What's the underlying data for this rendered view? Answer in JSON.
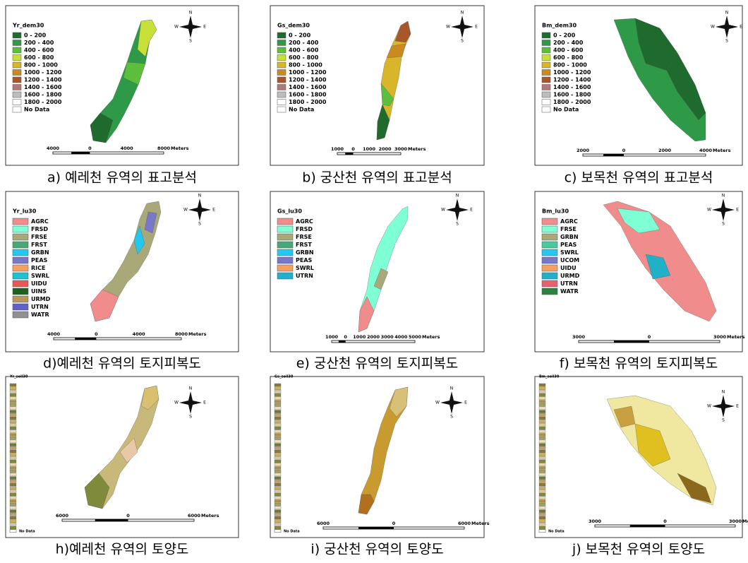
{
  "compass": {
    "n": "N",
    "s": "S",
    "e": "E",
    "w": "W"
  },
  "panels": [
    {
      "caption": "a) 예레천 유역의 표고분석",
      "legend_title": "Yr_dem30",
      "legend_items": [
        {
          "label": "0 - 200",
          "color": "#1f6b2e"
        },
        {
          "label": "200 - 400",
          "color": "#2e9a48"
        },
        {
          "label": "400 - 600",
          "color": "#5cbf3c"
        },
        {
          "label": "600 - 800",
          "color": "#c9df3a"
        },
        {
          "label": "800 - 1000",
          "color": "#d8b52a"
        },
        {
          "label": "1000 - 1200",
          "color": "#c98a1e"
        },
        {
          "label": "1200 - 1400",
          "color": "#a8572a"
        },
        {
          "label": "1400 - 1600",
          "color": "#b07a7a"
        },
        {
          "label": "1600 - 1800",
          "color": "#bdbdbd"
        },
        {
          "label": "1800 - 2000",
          "color": "#ffffff"
        },
        {
          "label": "No Data",
          "color": "#ffffff"
        }
      ],
      "scale_labels": [
        "4000",
        "0",
        "4000",
        "8000"
      ],
      "unit": "Meters"
    },
    {
      "caption": "b) 궁산천 유역의 표고분석",
      "legend_title": "Gs_dem30",
      "legend_items": [
        {
          "label": "0 - 200",
          "color": "#1f6b2e"
        },
        {
          "label": "200 - 400",
          "color": "#2e9a48"
        },
        {
          "label": "400 - 600",
          "color": "#5cbf3c"
        },
        {
          "label": "600 - 800",
          "color": "#c9df3a"
        },
        {
          "label": "800 - 1000",
          "color": "#d8b52a"
        },
        {
          "label": "1000 - 1200",
          "color": "#c98a1e"
        },
        {
          "label": "1200 - 1400",
          "color": "#a8572a"
        },
        {
          "label": "1400 - 1600",
          "color": "#b07a7a"
        },
        {
          "label": "1600 - 1800",
          "color": "#bdbdbd"
        },
        {
          "label": "1800 - 2000",
          "color": "#ffffff"
        },
        {
          "label": "No Data",
          "color": "#ffffff"
        }
      ],
      "scale_labels": [
        "1000",
        "0",
        "1000",
        "2000",
        "3000"
      ],
      "unit": "Meters"
    },
    {
      "caption": "c) 보목천 유역의 표고분석",
      "legend_title": "Bm_dem30",
      "legend_items": [
        {
          "label": "0 - 200",
          "color": "#1f6b2e"
        },
        {
          "label": "200 - 400",
          "color": "#2e9a48"
        },
        {
          "label": "400 - 600",
          "color": "#5cbf3c"
        },
        {
          "label": "600 - 800",
          "color": "#c9df3a"
        },
        {
          "label": "800 - 1000",
          "color": "#d8b52a"
        },
        {
          "label": "1000 - 1200",
          "color": "#c98a1e"
        },
        {
          "label": "1200 - 1400",
          "color": "#a8572a"
        },
        {
          "label": "1400 - 1600",
          "color": "#b07a7a"
        },
        {
          "label": "1600 - 1800",
          "color": "#bdbdbd"
        },
        {
          "label": "1800 - 2000",
          "color": "#ffffff"
        },
        {
          "label": "No Data",
          "color": "#ffffff"
        }
      ],
      "scale_labels": [
        "2000",
        "0",
        "2000",
        "4000"
      ],
      "unit": "Meters"
    },
    {
      "caption": "d)예레천 유역의 토지피복도",
      "legend_title": "Yr_lu30",
      "legend_items": [
        {
          "label": "AGRC",
          "color": "#f08c8c"
        },
        {
          "label": "FRSD",
          "color": "#7fffd4"
        },
        {
          "label": "FRSE",
          "color": "#a8a878"
        },
        {
          "label": "FRST",
          "color": "#4aa878"
        },
        {
          "label": "GRBN",
          "color": "#22c8f0"
        },
        {
          "label": "PEAS",
          "color": "#7878c8"
        },
        {
          "label": "RICE",
          "color": "#f4a060"
        },
        {
          "label": "SWRL",
          "color": "#20c0d0"
        },
        {
          "label": "UIDU",
          "color": "#e85858"
        },
        {
          "label": "UINS",
          "color": "#1f5f1f"
        },
        {
          "label": "URMD",
          "color": "#b89858"
        },
        {
          "label": "UTRN",
          "color": "#6060c8"
        },
        {
          "label": "WATR",
          "color": "#909090"
        }
      ],
      "scale_labels": [
        "4000",
        "0",
        "4000",
        "8000"
      ],
      "unit": "Meters"
    },
    {
      "caption": "e) 궁산천 유역의 토지피복도",
      "legend_title": "Gs_lu30",
      "legend_items": [
        {
          "label": "AGRC",
          "color": "#f08c8c"
        },
        {
          "label": "FRSD",
          "color": "#7fffd4"
        },
        {
          "label": "FRSE",
          "color": "#a8a878"
        },
        {
          "label": "FRST",
          "color": "#4aa878"
        },
        {
          "label": "GRBN",
          "color": "#22c8f0"
        },
        {
          "label": "PEAS",
          "color": "#7878c8"
        },
        {
          "label": "SWRL",
          "color": "#f4a060"
        },
        {
          "label": "UTRN",
          "color": "#20b0c8"
        }
      ],
      "scale_labels": [
        "1000",
        "0",
        "1000",
        "2000",
        "3000",
        "4000",
        "5000"
      ],
      "unit": "Meters"
    },
    {
      "caption": "f) 보목천 유역의 토지피복도",
      "legend_title": "Bm_lu30",
      "legend_items": [
        {
          "label": "AGRC",
          "color": "#f08c8c"
        },
        {
          "label": "FRSE",
          "color": "#7fffd4"
        },
        {
          "label": "GRBN",
          "color": "#a8a878"
        },
        {
          "label": "PEAS",
          "color": "#4ac8a0"
        },
        {
          "label": "SWRL",
          "color": "#22c8f0"
        },
        {
          "label": "UCOM",
          "color": "#7878c8"
        },
        {
          "label": "UIDU",
          "color": "#f4a060"
        },
        {
          "label": "URMD",
          "color": "#20b0c8"
        },
        {
          "label": "UTRN",
          "color": "#e86070"
        },
        {
          "label": "WATR",
          "color": "#2f7f3f"
        }
      ],
      "scale_labels": [
        "3000",
        "0",
        "3000"
      ],
      "unit": "Meters"
    },
    {
      "caption": "h)예레천 유역의 토양도",
      "legend_title": "Yr_soil30",
      "legend_items": [
        {
          "label": "No Data",
          "color": "#ffffff"
        }
      ],
      "scale_labels": [
        "6000",
        "0",
        "6000"
      ],
      "unit": "Meters"
    },
    {
      "caption": "i) 궁산천 유역의 토양도",
      "legend_title": "Gs_soil30",
      "legend_items": [
        {
          "label": "No Data",
          "color": "#ffffff"
        }
      ],
      "scale_labels": [
        "6000",
        "0",
        "6000"
      ],
      "unit": "Meters"
    },
    {
      "caption": "j) 보목천 유역의 토양도",
      "legend_title": "Bm_soil30",
      "legend_items": [
        {
          "label": "No Data",
          "color": "#ffffff"
        }
      ],
      "scale_labels": [
        "3000",
        "0",
        "3000"
      ],
      "unit": "Meters"
    }
  ]
}
